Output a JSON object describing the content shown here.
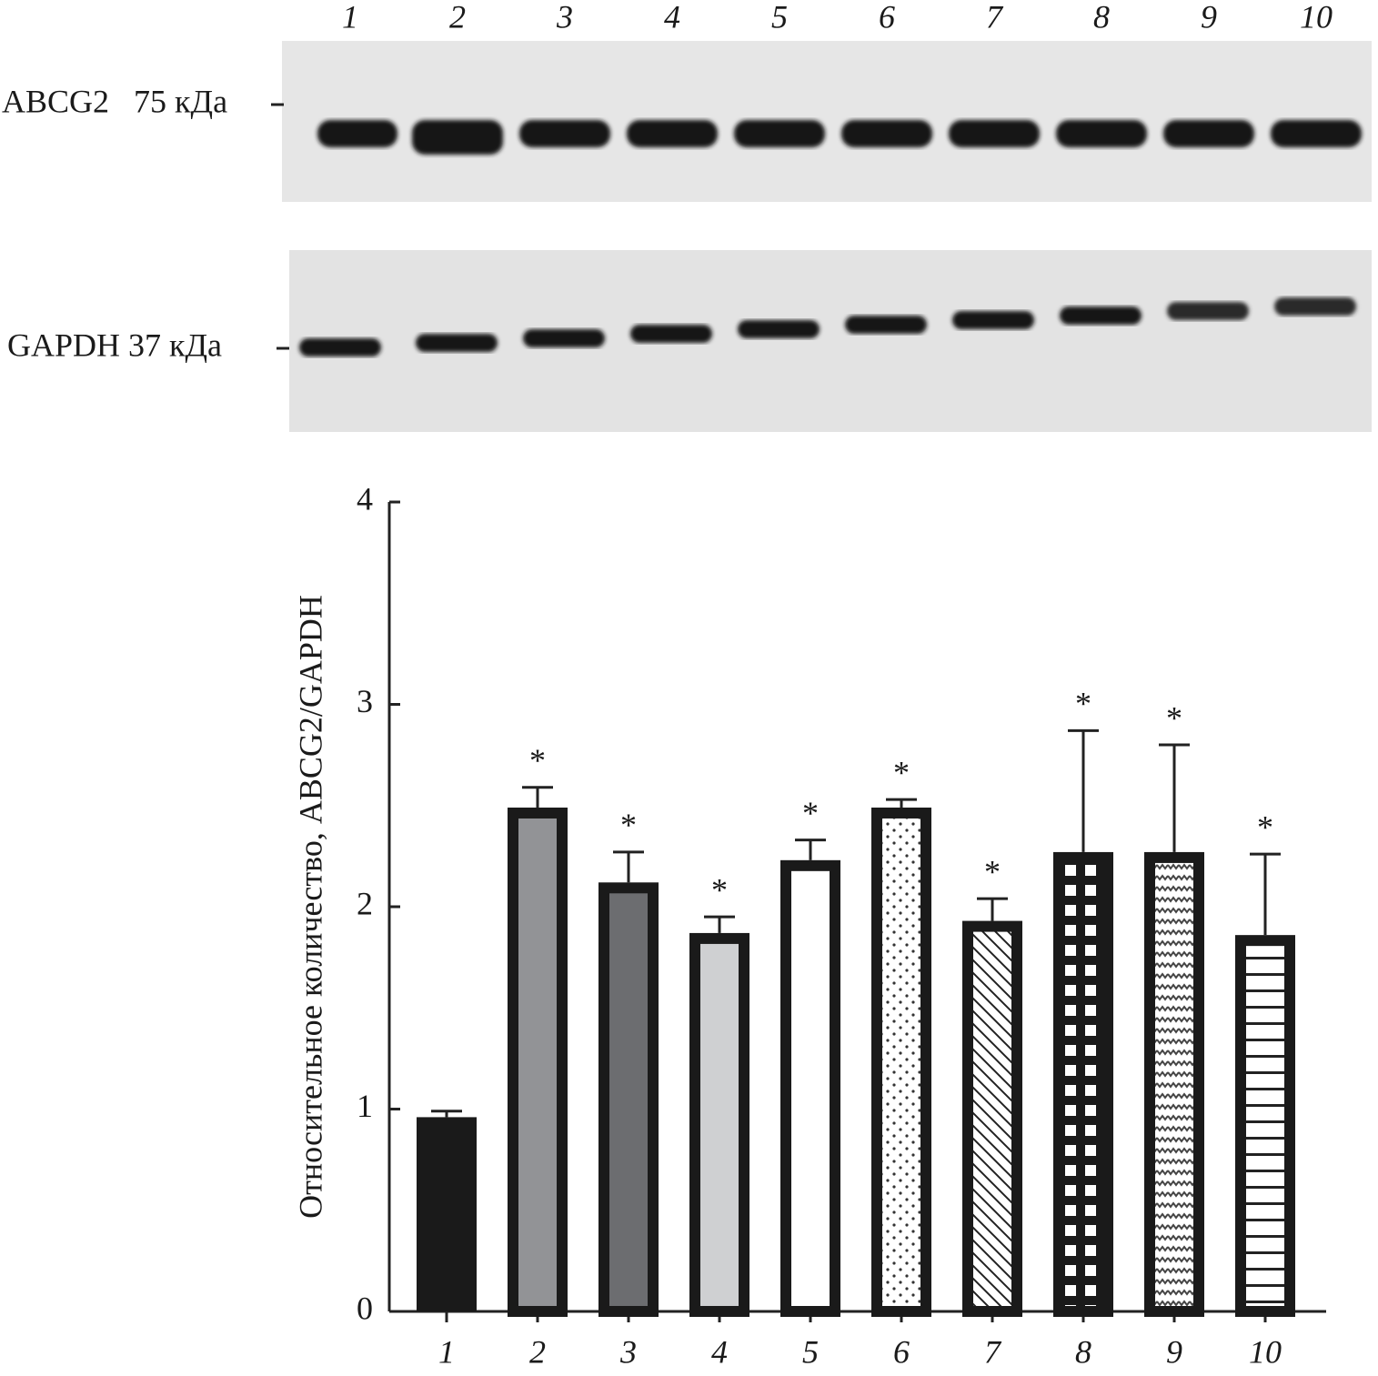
{
  "blot": {
    "lanes": [
      "1",
      "2",
      "3",
      "4",
      "5",
      "6",
      "7",
      "8",
      "9",
      "10"
    ],
    "top_label": "ABCG2   75 кДа",
    "bottom_label": "GAPDH 37 кДа"
  },
  "chart_data": {
    "type": "bar",
    "y_label": "Относительное количество, ABCG2/GAPDH",
    "categories": [
      "1",
      "2",
      "3",
      "4",
      "5",
      "6",
      "7",
      "8",
      "9",
      "10"
    ],
    "values": [
      0.96,
      2.49,
      2.12,
      1.87,
      2.23,
      2.49,
      1.93,
      2.27,
      2.27,
      1.86
    ],
    "errors": [
      0.03,
      0.1,
      0.15,
      0.08,
      0.1,
      0.04,
      0.11,
      0.6,
      0.53,
      0.4
    ],
    "annotations": [
      null,
      "*",
      "*",
      "*",
      "*",
      "*",
      "*",
      "*",
      "*",
      "*"
    ],
    "fills": [
      "#1a1a1a",
      "#929396",
      "#6c6d70",
      "#cfd0d2",
      "#ffffff",
      "#ffffff",
      "#ffffff",
      "#ffffff",
      "#ffffff",
      "#ffffff"
    ],
    "patterns": [
      "solid",
      "solid",
      "solid",
      "solid",
      "solid",
      "dots",
      "diagonal",
      "grid",
      "zigzag",
      "horizontal"
    ],
    "ylim": [
      0,
      4
    ],
    "yticks": [
      0,
      1,
      2,
      3,
      4
    ],
    "grid": false
  }
}
